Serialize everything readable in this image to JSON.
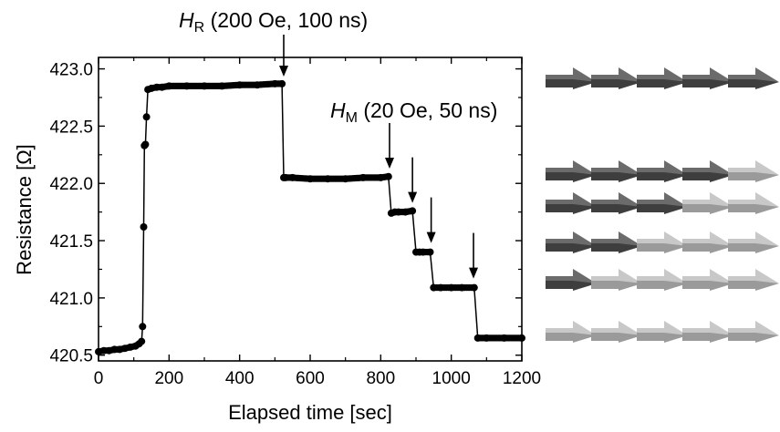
{
  "chart_data": {
    "type": "scatter",
    "xlabel": "Elapsed time [sec]",
    "ylabel": "Resistance [Ω]",
    "xlim": [
      0,
      1200
    ],
    "ylim": [
      420.45,
      423.1
    ],
    "xticks": [
      0,
      200,
      400,
      600,
      800,
      1000,
      1200
    ],
    "yticks": [
      420.5,
      421.0,
      421.5,
      422.0,
      422.5,
      423.0
    ],
    "ytick_labels": [
      "420.5",
      "421.0",
      "421.5",
      "422.0",
      "422.5",
      "423.0"
    ],
    "grid": false,
    "marker_color": "#000000",
    "series": [
      {
        "x": [
          0,
          15,
          30,
          45,
          60,
          75,
          90,
          105,
          115,
          122,
          125,
          128,
          130,
          133,
          136,
          140,
          150,
          165,
          180,
          200,
          250,
          300,
          350,
          400,
          450,
          500,
          520,
          525,
          530,
          550,
          600,
          650,
          700,
          750,
          800,
          822,
          830,
          840,
          850,
          870,
          890,
          900,
          910,
          920,
          940,
          950,
          970,
          1000,
          1030,
          1065,
          1075,
          1100,
          1150,
          1200
        ],
        "y": [
          420.53,
          420.54,
          420.54,
          420.55,
          420.55,
          420.56,
          420.57,
          420.58,
          420.6,
          420.62,
          420.75,
          421.62,
          422.33,
          422.34,
          422.58,
          422.82,
          422.83,
          422.84,
          422.84,
          422.85,
          422.85,
          422.85,
          422.85,
          422.86,
          422.86,
          422.87,
          422.87,
          422.05,
          422.05,
          422.05,
          422.04,
          422.04,
          422.04,
          422.05,
          422.05,
          422.06,
          421.74,
          421.75,
          421.75,
          421.75,
          421.76,
          421.4,
          421.4,
          421.4,
          421.4,
          421.09,
          421.09,
          421.09,
          421.09,
          421.09,
          420.65,
          420.65,
          420.65,
          420.65
        ]
      }
    ],
    "annotations": [
      {
        "main": "H",
        "sub": "R",
        "rest": " (200 Oe, 100 ns)",
        "x": 525
      },
      {
        "main": "H",
        "sub": "M",
        "rest": " (20 Oe, 50 ns)",
        "x": 825
      }
    ],
    "pulse_arrows_x": [
      525,
      825,
      890,
      943,
      1063
    ]
  },
  "magnet_rows": [
    {
      "states": [
        "dark",
        "dark",
        "dark",
        "dark",
        "dark"
      ]
    },
    {
      "states": [
        "dark",
        "dark",
        "dark",
        "dark",
        "light"
      ]
    },
    {
      "states": [
        "dark",
        "dark",
        "dark",
        "light",
        "light"
      ]
    },
    {
      "states": [
        "dark",
        "dark",
        "light",
        "light",
        "light"
      ]
    },
    {
      "states": [
        "dark",
        "light",
        "light",
        "light",
        "light"
      ]
    },
    {
      "states": [
        "light",
        "light",
        "light",
        "light",
        "light"
      ]
    }
  ],
  "colors": {
    "dark_top": "#6b6b6b",
    "dark_bottom": "#3e3e3e",
    "light_top": "#c8c8c8",
    "light_bottom": "#9a9a9a"
  }
}
